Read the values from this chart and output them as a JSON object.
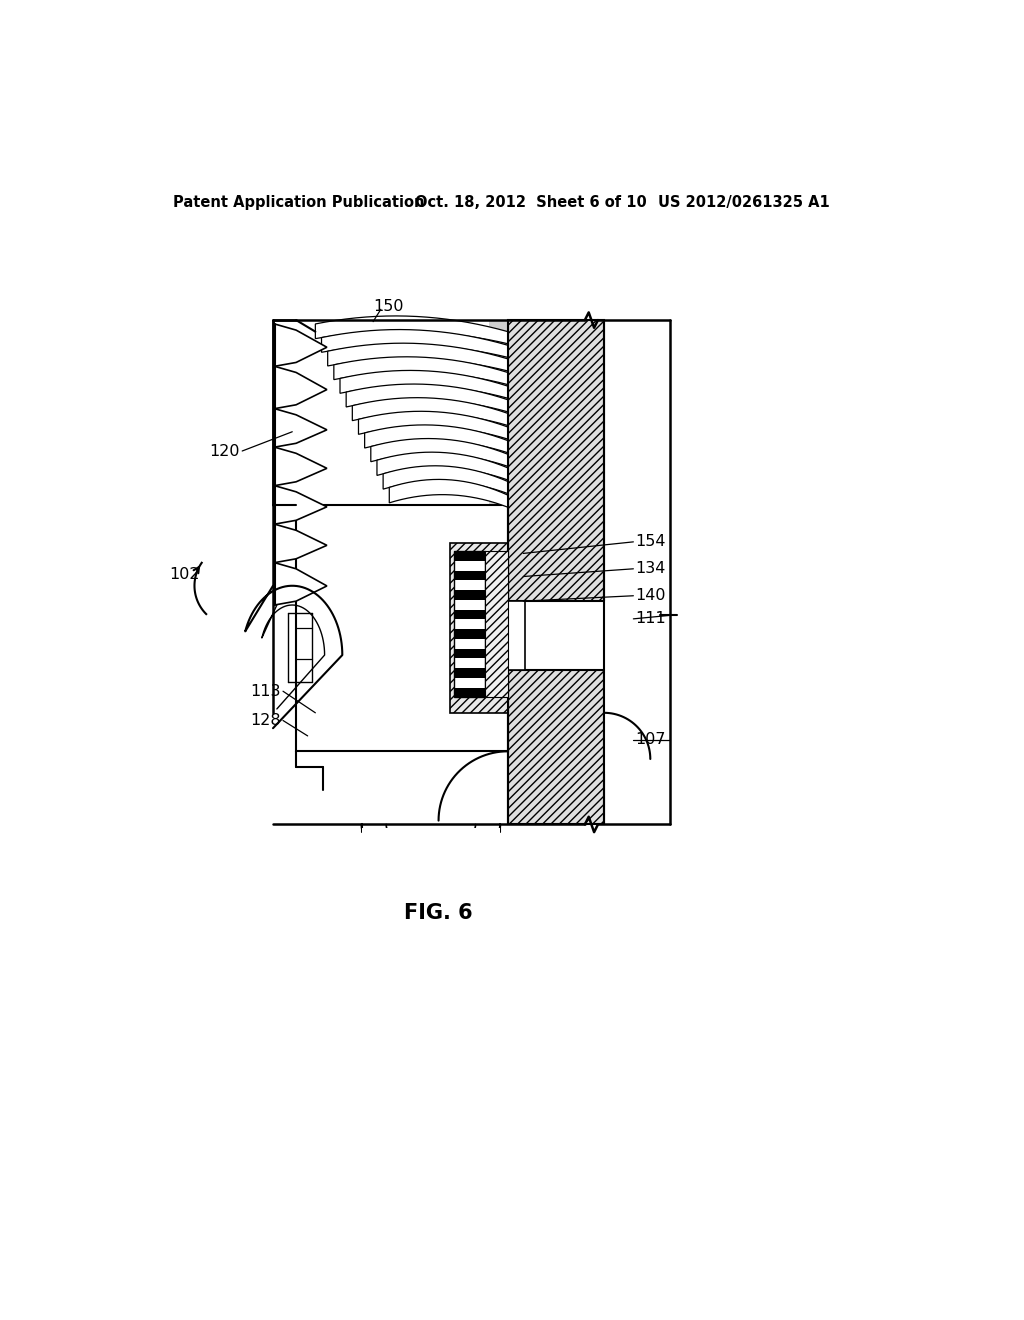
{
  "header_left": "Patent Application Publication",
  "header_mid": "Oct. 18, 2012  Sheet 6 of 10",
  "header_right": "US 2012/0261325 A1",
  "fig_label": "FIG. 6",
  "background": "#ffffff",
  "line_color": "#000000"
}
